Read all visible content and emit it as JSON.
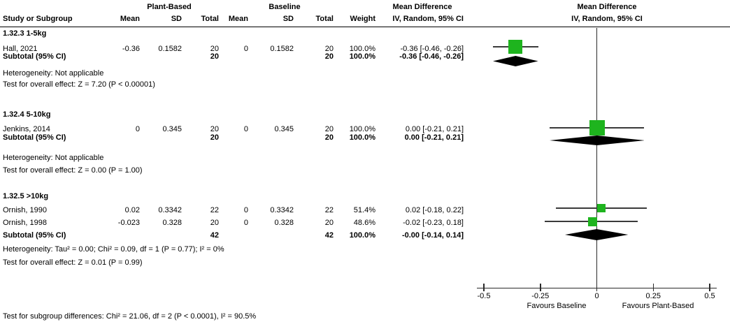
{
  "header": {
    "group_plant": "Plant-Based",
    "group_baseline": "Baseline",
    "study_col": "Study or Subgroup",
    "mean_col": "Mean",
    "sd_col": "SD",
    "total_col": "Total",
    "weight_col": "Weight",
    "md_title_text": "Mean Difference",
    "md_sub_text": "IV, Random, 95% CI",
    "md_title_plot": "Mean Difference",
    "md_sub_plot": "IV, Random, 95% CI"
  },
  "chart_data": {
    "type": "forest",
    "effect_measure": "Mean Difference, IV, Random, 95% CI",
    "x_axis": {
      "range": [
        -0.5,
        0.5
      ],
      "ticks": [
        -0.5,
        -0.25,
        0,
        0.25,
        0.5
      ],
      "tick_labels": [
        "-0.5",
        "-0.25",
        "0",
        "0.25",
        "0.5"
      ],
      "left_label": "Favours Baseline",
      "right_label": "Favours Plant-Based"
    },
    "subgroups": [
      {
        "title": "1.32.3 1-5kg",
        "studies": [
          {
            "name": "Hall, 2021",
            "plant_mean": "-0.36",
            "plant_sd": "0.1582",
            "plant_total": "20",
            "base_mean": "0",
            "base_sd": "0.1582",
            "base_total": "20",
            "weight": "100.0%",
            "ci_text": "-0.36 [-0.46, -0.26]",
            "est": -0.36,
            "ci_low": -0.46,
            "ci_high": -0.26,
            "weight_pct": 100.0
          }
        ],
        "subtotal": {
          "label": "Subtotal (95% CI)",
          "plant_total": "20",
          "base_total": "20",
          "weight": "100.0%",
          "ci_text": "-0.36 [-0.46, -0.26]",
          "est": -0.36,
          "ci_low": -0.46,
          "ci_high": -0.26
        },
        "heterogeneity": "Heterogeneity: Not applicable",
        "overall_test": "Test for overall effect: Z = 7.20 (P < 0.00001)"
      },
      {
        "title": "1.32.4 5-10kg",
        "studies": [
          {
            "name": "Jenkins, 2014",
            "plant_mean": "0",
            "plant_sd": "0.345",
            "plant_total": "20",
            "base_mean": "0",
            "base_sd": "0.345",
            "base_total": "20",
            "weight": "100.0%",
            "ci_text": "0.00 [-0.21, 0.21]",
            "est": 0.0,
            "ci_low": -0.21,
            "ci_high": 0.21,
            "weight_pct": 100.0
          }
        ],
        "subtotal": {
          "label": "Subtotal (95% CI)",
          "plant_total": "20",
          "base_total": "20",
          "weight": "100.0%",
          "ci_text": "0.00 [-0.21, 0.21]",
          "est": 0.0,
          "ci_low": -0.21,
          "ci_high": 0.21
        },
        "heterogeneity": "Heterogeneity: Not applicable",
        "overall_test": "Test for overall effect: Z = 0.00 (P = 1.00)"
      },
      {
        "title": "1.32.5 >10kg",
        "studies": [
          {
            "name": "Ornish, 1990",
            "plant_mean": "0.02",
            "plant_sd": "0.3342",
            "plant_total": "22",
            "base_mean": "0",
            "base_sd": "0.3342",
            "base_total": "22",
            "weight": "51.4%",
            "ci_text": "0.02 [-0.18, 0.22]",
            "est": 0.02,
            "ci_low": -0.18,
            "ci_high": 0.22,
            "weight_pct": 51.4
          },
          {
            "name": "Ornish, 1998",
            "plant_mean": "-0.023",
            "plant_sd": "0.328",
            "plant_total": "20",
            "base_mean": "0",
            "base_sd": "0.328",
            "base_total": "20",
            "weight": "48.6%",
            "ci_text": "-0.02 [-0.23, 0.18]",
            "est": -0.02,
            "ci_low": -0.23,
            "ci_high": 0.18,
            "weight_pct": 48.6
          }
        ],
        "subtotal": {
          "label": "Subtotal (95% CI)",
          "plant_total": "42",
          "base_total": "42",
          "weight": "100.0%",
          "ci_text": "-0.00 [-0.14, 0.14]",
          "est": -0.002,
          "ci_low": -0.14,
          "ci_high": 0.14
        },
        "heterogeneity": "Heterogeneity: Tau² = 0.00; Chi² = 0.09, df = 1 (P = 0.77); I² = 0%",
        "overall_test": "Test for overall effect: Z = 0.01 (P = 0.99)"
      }
    ],
    "footer": "Test for subgroup differences: Chi² = 21.06, df = 2 (P < 0.0001), I² = 90.5%"
  },
  "colors": {
    "square": "#1EB41E",
    "diamond": "#000000",
    "line": "#3a3a3a",
    "text": "#000000"
  }
}
